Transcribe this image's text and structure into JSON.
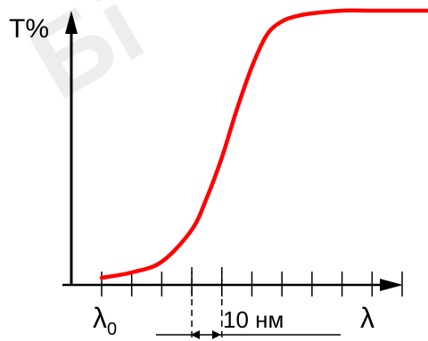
{
  "chart_data": {
    "type": "line",
    "y_axis_label": "T%",
    "x_axis_label": "λ",
    "x_origin_label": "λ",
    "x_origin_subscript": "0",
    "interval_label": "10 нм",
    "watermark": "Бi",
    "colors": {
      "curve": "#ff0000",
      "axes": "#000000",
      "watermark": "#e9e9e9"
    },
    "x_ticks": [
      0,
      1,
      2,
      3,
      4,
      5,
      6,
      7,
      8,
      9,
      10
    ],
    "xlim": [
      -1.2,
      11.1
    ],
    "ylim": [
      0,
      100
    ],
    "series": [
      {
        "x": [
          0,
          1,
          2,
          3,
          3.5,
          4,
          4.5,
          5,
          5.5,
          6,
          6.5,
          7,
          8,
          9,
          10,
          11
        ],
        "y": [
          0,
          2,
          6,
          18,
          30,
          45,
          63,
          79,
          91,
          96,
          98,
          99,
          100,
          100,
          100,
          100
        ]
      }
    ]
  }
}
